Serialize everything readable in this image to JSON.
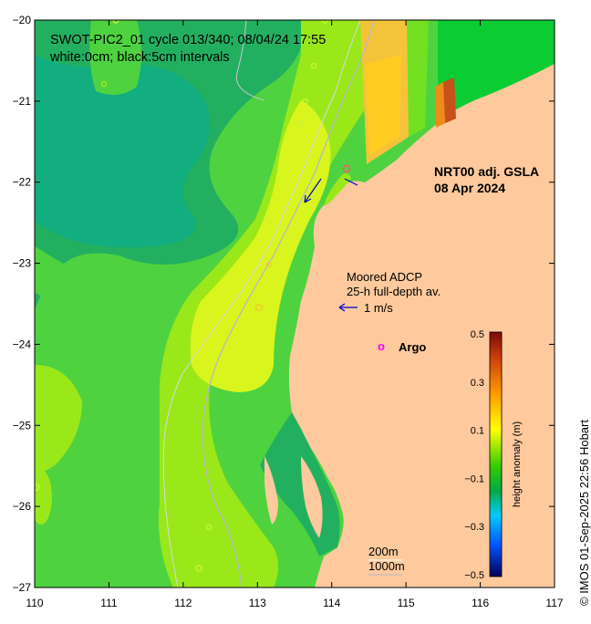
{
  "map": {
    "header": {
      "line1": "SWOT-PIC2_01 cycle 013/340; 08/04/24 17:55",
      "line2": "white:0cm; black:5cm intervals"
    },
    "product": {
      "name": "NRT00 adj. GSLA",
      "date": "08 Apr 2024"
    },
    "adcp": {
      "line1": "Moored ADCP",
      "line2": "25-h full-depth av.",
      "scale": "1 m/s"
    },
    "argo": {
      "marker": "o",
      "label": "Argo"
    },
    "isobaths": {
      "shallow": "200m",
      "deep": "1000m"
    },
    "x_ticks": [
      "110",
      "111",
      "112",
      "113",
      "114",
      "115",
      "116",
      "117"
    ],
    "y_ticks": [
      "−20",
      "−21",
      "−22",
      "−23",
      "−24",
      "−25",
      "−26",
      "−27"
    ],
    "lon_range": [
      110,
      117
    ],
    "lat_range": [
      -27,
      -20
    ],
    "credit": "© IMOS 01-Sep-2025 22:56 Hobart"
  },
  "colorbar": {
    "label": "height anomaly (m)",
    "ticks": [
      "0.5",
      "0.3",
      "0.1",
      "−0.1",
      "−0.3",
      "−0.5"
    ],
    "range": [
      -0.5,
      0.5
    ],
    "colors": {
      "top": "#7a0a0a",
      "mid_hi": "#ff9900",
      "yellow": "#ffff00",
      "green": "#00cc00",
      "cyan": "#00ccff",
      "bottom": "#00005a"
    }
  },
  "colors": {
    "land": "#fdc99d",
    "green_base": "#4fd23f",
    "green_dark": "#22b060",
    "teal": "#12ae7f",
    "lime": "#9ae81a",
    "yellow_green": "#d8f51d",
    "arrow": "#0000cc",
    "argo": "#ff00ff"
  }
}
